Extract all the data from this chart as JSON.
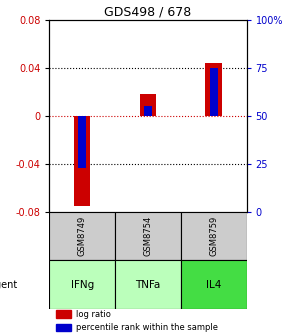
{
  "title": "GDS498 / 678",
  "samples": [
    "GSM8749",
    "GSM8754",
    "GSM8759"
  ],
  "agents": [
    "IFNg",
    "TNFa",
    "IL4"
  ],
  "log_ratios": [
    -0.075,
    0.018,
    0.044
  ],
  "percentile_ranks": [
    23,
    55,
    75
  ],
  "ylim_left": [
    -0.08,
    0.08
  ],
  "ylim_right": [
    0,
    100
  ],
  "yticks_left": [
    -0.08,
    -0.04,
    0.0,
    0.04,
    0.08
  ],
  "yticks_right": [
    0,
    25,
    50,
    75,
    100
  ],
  "ytick_labels_right": [
    "0",
    "25",
    "50",
    "75",
    "100%"
  ],
  "bar_color_log": "#cc0000",
  "bar_color_pct": "#0000cc",
  "zero_line_color": "#cc0000",
  "sample_box_color": "#cccccc",
  "agent_box_colors": [
    "#bbffbb",
    "#bbffbb",
    "#44dd44"
  ],
  "log_bar_width": 0.25,
  "pct_bar_width": 0.12,
  "agent_label": "agent"
}
